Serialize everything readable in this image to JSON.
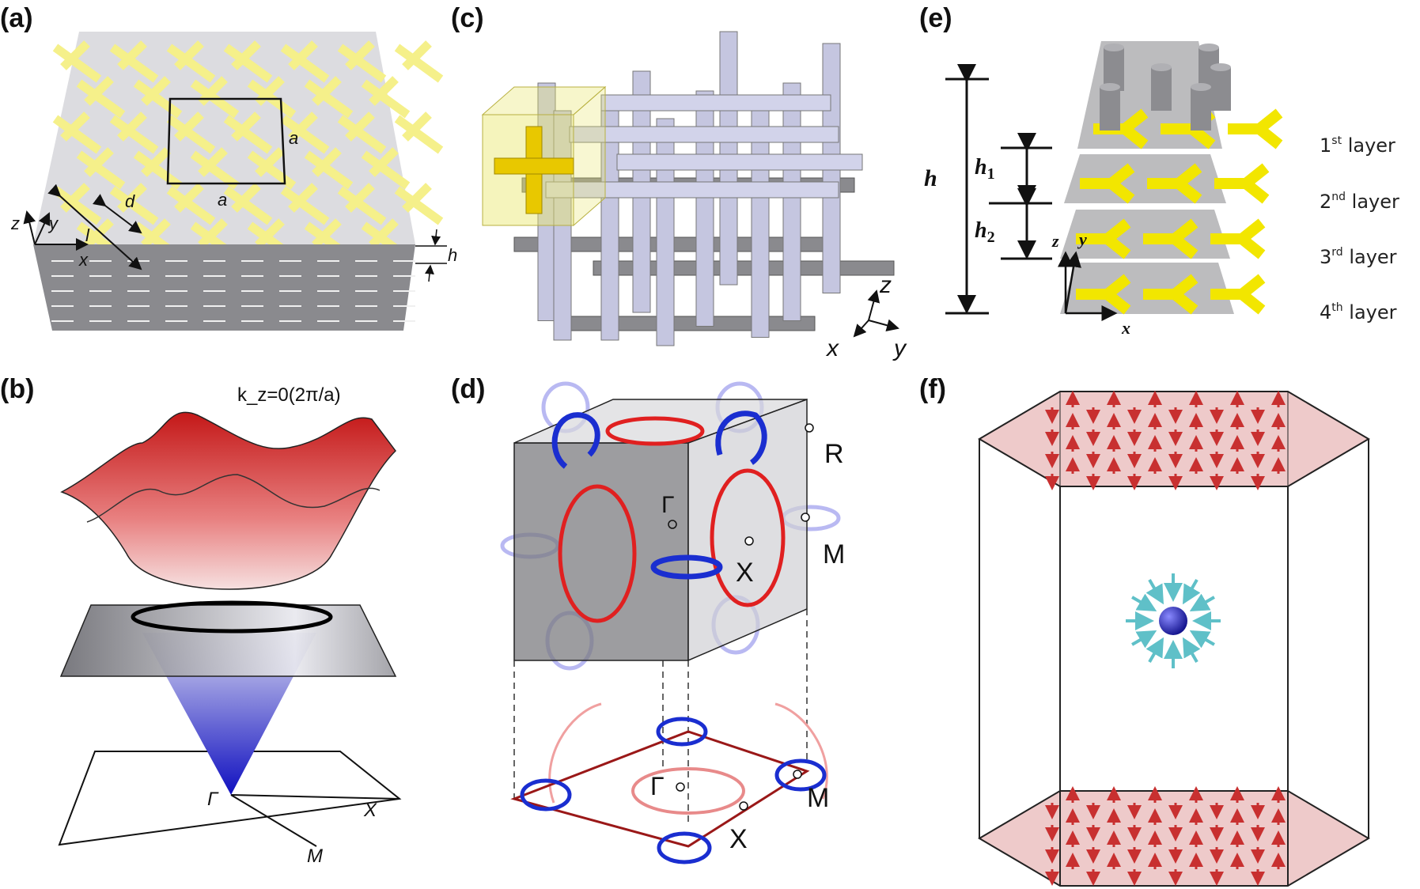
{
  "panels": {
    "a": {
      "label": "(a)",
      "dim_a1": "a",
      "dim_a2": "a",
      "dim_d": "d",
      "dim_l": "l",
      "dim_h": "h",
      "axis_x": "x",
      "axis_y": "y",
      "axis_z": "z"
    },
    "b": {
      "label": "(b)",
      "title": "k_z=0(2π/a)",
      "point_gamma": "Γ",
      "point_x": "X",
      "point_m": "M"
    },
    "c": {
      "label": "(c)",
      "axis_x": "x",
      "axis_y": "y",
      "axis_z": "z"
    },
    "d": {
      "label": "(d)",
      "point_r": "R",
      "point_m": "M",
      "point_x": "X",
      "point_gamma": "Γ",
      "proj_gamma": "Γ",
      "proj_m": "M",
      "proj_x": "X"
    },
    "e": {
      "label": "(e)",
      "dim_h": "h",
      "dim_h1": "h",
      "dim_h1_sub": "1",
      "dim_h2": "h",
      "dim_h2_sub": "2",
      "axis_x": "x",
      "axis_y": "y",
      "axis_z": "z",
      "layers": [
        {
          "num": "1",
          "sup": "st",
          "text": " layer"
        },
        {
          "num": "2",
          "sup": "nd",
          "text": " layer"
        },
        {
          "num": "3",
          "sup": "rd",
          "text": " layer"
        },
        {
          "num": "4",
          "sup": "th",
          "text": " layer"
        }
      ]
    },
    "f": {
      "label": "(f)"
    }
  },
  "colors": {
    "gold": "#f2e600",
    "pale_gold": "#f5f08a",
    "lattice": "#c5c6e0",
    "red": "#e02020",
    "blue": "#1a2ed0",
    "pink": "#e8b8b8",
    "arrow_red": "#d04040",
    "cyan": "#5fc0c8"
  }
}
